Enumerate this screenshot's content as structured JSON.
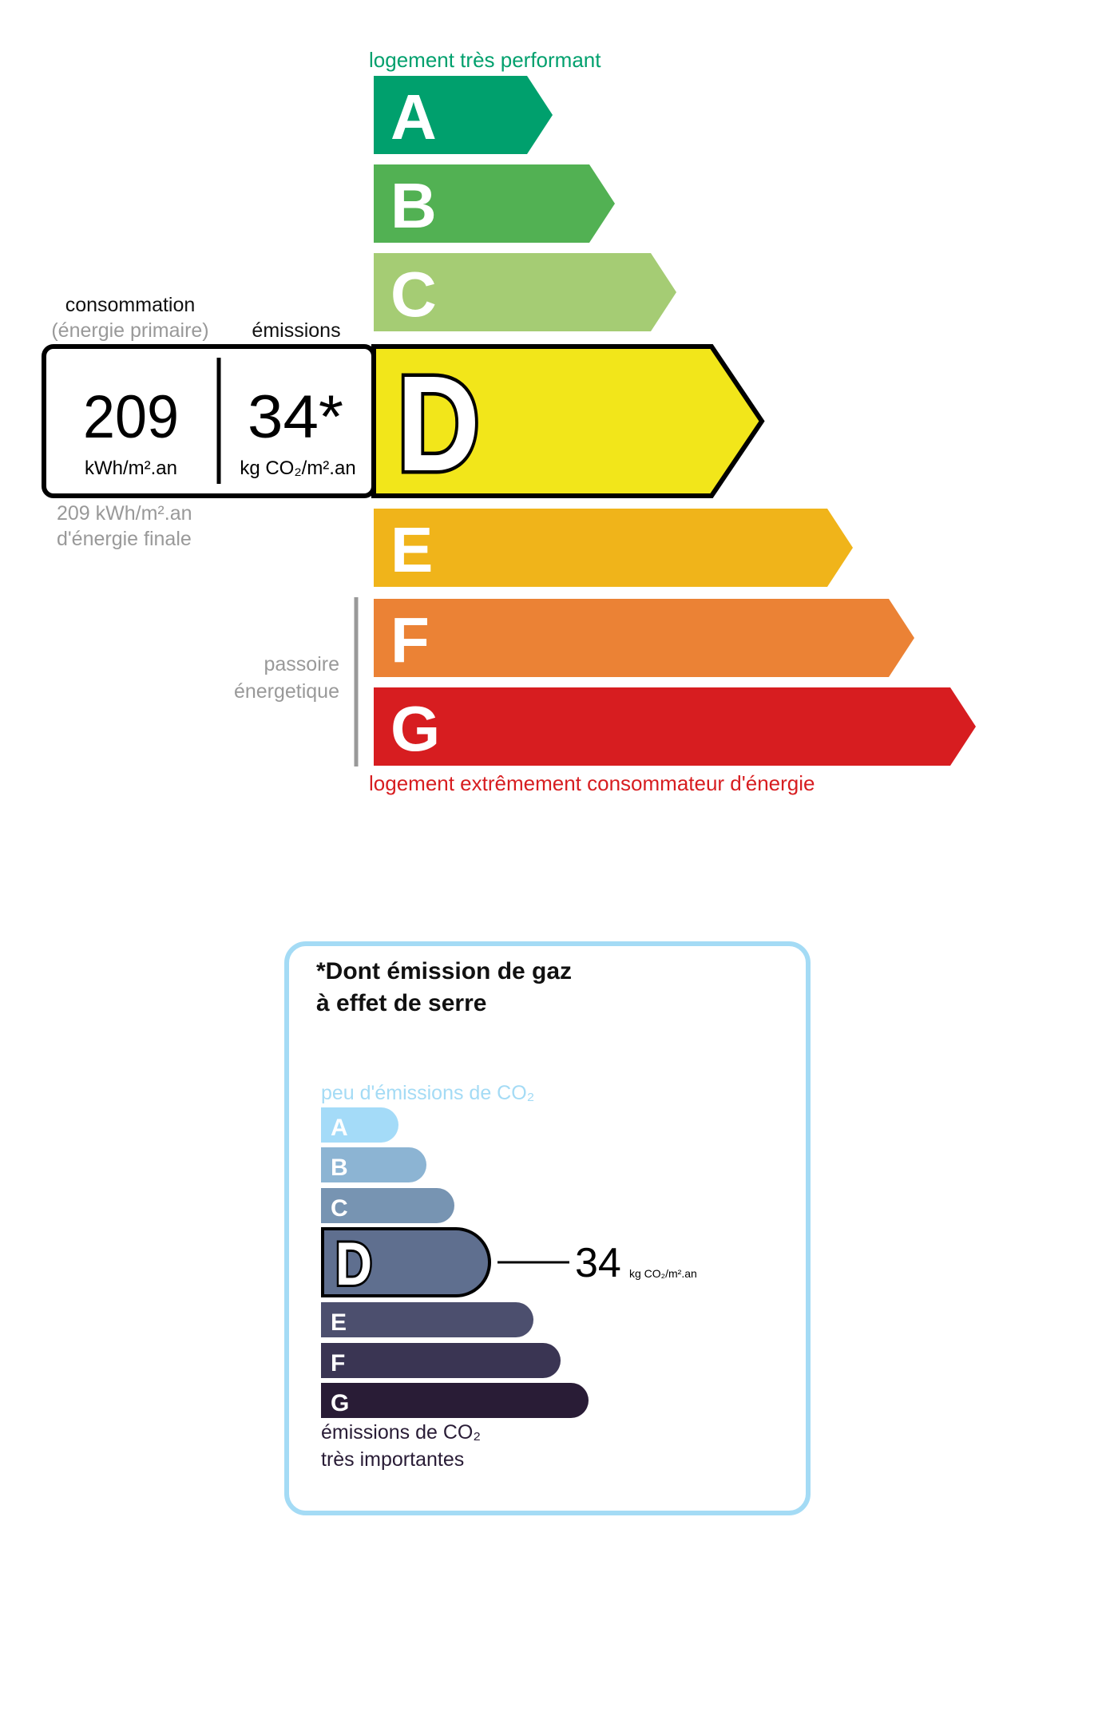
{
  "energy": {
    "top_label": "logement très performant",
    "bottom_label": "logement extrêmement consommateur d'énergie",
    "top_color": "#00a06d",
    "bottom_color": "#d71d20",
    "classes": [
      {
        "letter": "A",
        "color": "#00a06d"
      },
      {
        "letter": "B",
        "color": "#52b153"
      },
      {
        "letter": "C",
        "color": "#a5cc74"
      },
      {
        "letter": "D",
        "color": "#f2e61a"
      },
      {
        "letter": "E",
        "color": "#f0b41a"
      },
      {
        "letter": "F",
        "color": "#eb8235"
      },
      {
        "letter": "G",
        "color": "#d71d20"
      }
    ],
    "current_class": "D",
    "consumption_header": "consommation",
    "consumption_subheader": "(énergie primaire)",
    "emissions_header": "émissions",
    "consumption_value": "209",
    "consumption_unit": "kWh/m².an",
    "emissions_value": "34*",
    "emissions_unit": "kg CO₂/m².an",
    "final_energy_line1": "209 kWh/m².an",
    "final_energy_line2": "d'énergie finale",
    "passoire_line1": "passoire",
    "passoire_line2": "énergetique"
  },
  "ges": {
    "title_line1": "*Dont émission de gaz",
    "title_line2": "à effet de serre",
    "top_label": "peu d'émissions de CO₂",
    "bottom_line1": "émissions de CO₂",
    "bottom_line2": "très importantes",
    "border_color": "#a4dbf5",
    "classes": [
      {
        "letter": "A",
        "color": "#a4dbf8"
      },
      {
        "letter": "B",
        "color": "#8cb4d3"
      },
      {
        "letter": "C",
        "color": "#7794b2"
      },
      {
        "letter": "D",
        "color": "#5f6f8f"
      },
      {
        "letter": "E",
        "color": "#4c4f6e"
      },
      {
        "letter": "F",
        "color": "#3a3553"
      },
      {
        "letter": "G",
        "color": "#291c36"
      }
    ],
    "current_class": "D",
    "value": "34",
    "unit": "kg CO₂/m².an"
  }
}
